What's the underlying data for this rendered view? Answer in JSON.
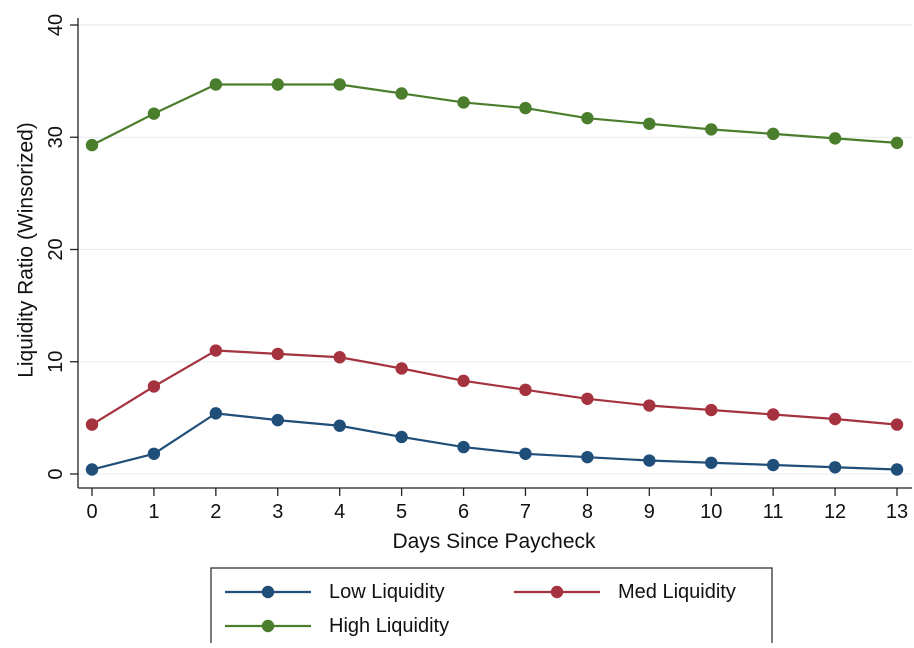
{
  "chart_data": {
    "type": "line",
    "title": "",
    "xlabel": "Days Since Paycheck",
    "ylabel": "Liquidity Ratio (Winsorized)",
    "x": [
      0,
      1,
      2,
      3,
      4,
      5,
      6,
      7,
      8,
      9,
      10,
      11,
      12,
      13
    ],
    "xlim": [
      0,
      13
    ],
    "ylim": [
      0,
      40
    ],
    "xticks": [
      "0",
      "1",
      "2",
      "3",
      "4",
      "5",
      "6",
      "7",
      "8",
      "9",
      "10",
      "11",
      "12",
      "13"
    ],
    "yticks": [
      "0",
      "10",
      "20",
      "30",
      "40"
    ],
    "grid": "horizontal",
    "legend_position": "bottom",
    "series": [
      {
        "name": "Low Liquidity",
        "color": "#1f4e79",
        "values": [
          0.4,
          1.8,
          5.4,
          4.8,
          4.3,
          3.3,
          2.4,
          1.8,
          1.5,
          1.2,
          1.0,
          0.8,
          0.6,
          0.4
        ]
      },
      {
        "name": "Med Liquidity",
        "color": "#a5333f",
        "values": [
          4.4,
          7.8,
          11.0,
          10.7,
          10.4,
          9.4,
          8.3,
          7.5,
          6.7,
          6.1,
          5.7,
          5.3,
          4.9,
          4.4
        ]
      },
      {
        "name": "High Liquidity",
        "color": "#4a7d2c",
        "values": [
          29.3,
          32.1,
          34.7,
          34.7,
          34.7,
          33.9,
          33.1,
          32.6,
          31.7,
          31.2,
          30.7,
          30.3,
          29.9,
          29.5
        ]
      }
    ]
  }
}
